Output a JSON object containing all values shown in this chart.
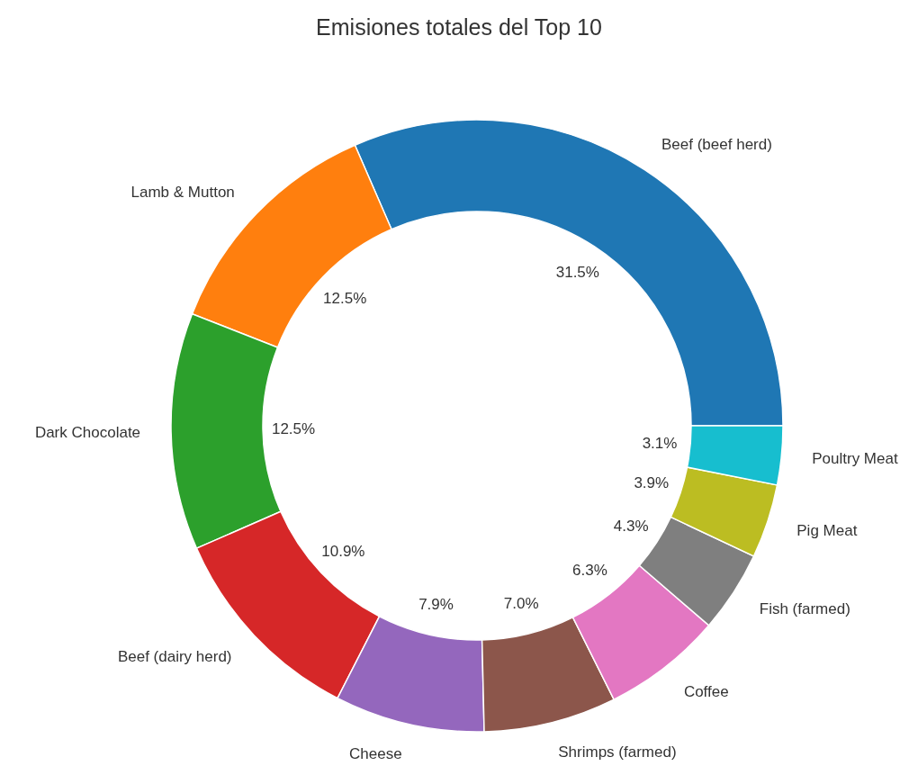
{
  "chart_data": {
    "type": "donut",
    "title": "Emisiones totales del Top 10",
    "categories": [
      "Beef (beef herd)",
      "Lamb & Mutton",
      "Dark Chocolate",
      "Beef (dairy herd)",
      "Cheese",
      "Shrimps (farmed)",
      "Coffee",
      "Fish (farmed)",
      "Pig Meat",
      "Poultry Meat"
    ],
    "values": [
      31.5,
      12.5,
      12.5,
      10.9,
      7.9,
      7.0,
      6.3,
      4.3,
      3.9,
      3.1
    ],
    "value_labels": [
      "31.5%",
      "12.5%",
      "12.5%",
      "10.9%",
      "7.9%",
      "7.0%",
      "6.3%",
      "4.3%",
      "3.9%",
      "3.1%"
    ],
    "colors": [
      "#1f77b4",
      "#ff7f0e",
      "#2ca02c",
      "#d62728",
      "#9467bd",
      "#8c564b",
      "#e377c2",
      "#7f7f7f",
      "#bcbd22",
      "#17becf"
    ]
  }
}
